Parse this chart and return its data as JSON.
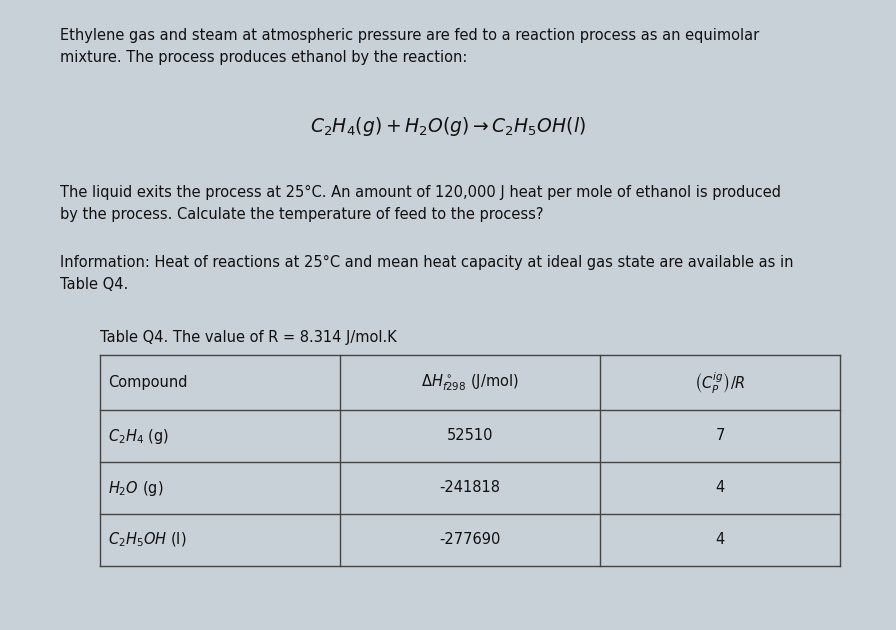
{
  "bg_color": "#c8d0d8",
  "content_bg": "#d4dae0",
  "title_text1": "Ethylene gas and steam at atmospheric pressure are fed to a reaction process as an equimolar",
  "title_text2": "mixture. The process produces ethanol by the reaction:",
  "reaction_eq": "$C_2H_4(g)+H_2O(g)\\rightarrow C_2H_5OH(l)$",
  "body_text1": "The liquid exits the process at 25°C. An amount of 120,000 J heat per mole of ethanol is produced",
  "body_text2": "by the process. Calculate the temperature of feed to the process?",
  "info_text1": "Information: Heat of reactions at 25°C and mean heat capacity at ideal gas state are available as in",
  "info_text2": "Table Q4.",
  "table_title": "Table Q4. The value of R = 8.314 J/mol.K",
  "col_headers": [
    "Compound",
    "$\\Delta H^\\circ_{f298}$ (J/mol)",
    "$\\left(C_P^{ig}\\right)/R$"
  ],
  "compounds": [
    "$C_2H_4$ (g)",
    "$H_2O$ (g)",
    "$C_2H_5OH$ (l)"
  ],
  "dh_values": [
    "52510",
    "-241818",
    "-277690"
  ],
  "cp_values": [
    "7",
    "4",
    "4"
  ],
  "text_color": "#111111",
  "table_border_color": "#444444",
  "font_size_body": 10.5,
  "font_size_reaction": 13.5,
  "font_size_table": 10.5,
  "font_size_table_title": 10.5
}
